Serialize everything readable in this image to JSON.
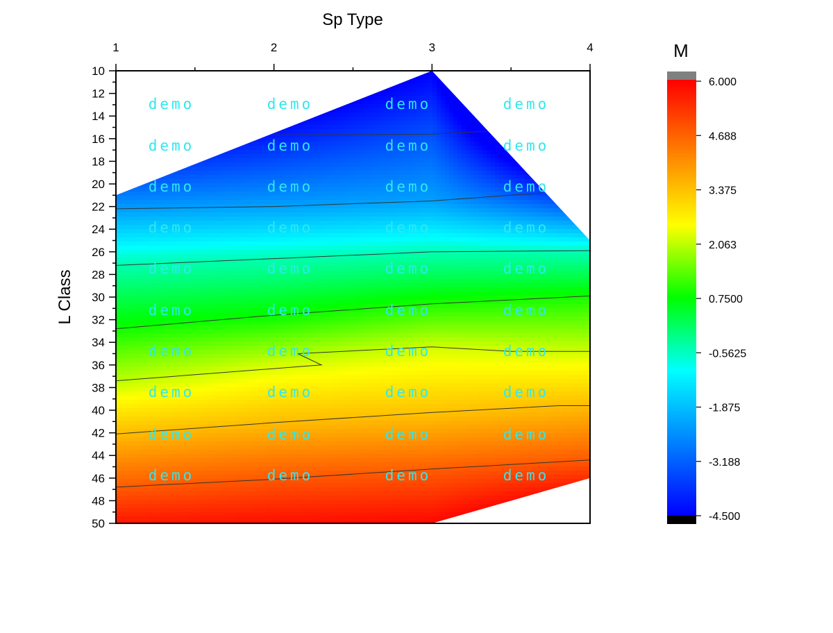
{
  "chart_data": {
    "type": "heatmap",
    "subtype": "filled-contour",
    "xlabel": "Sp Type",
    "ylabel": "L Class",
    "colorbar_title": "M",
    "x_ticks": [
      "1",
      "2",
      "3",
      "4"
    ],
    "y_ticks": [
      "10",
      "12",
      "14",
      "16",
      "18",
      "20",
      "22",
      "24",
      "26",
      "28",
      "30",
      "32",
      "34",
      "36",
      "38",
      "40",
      "42",
      "44",
      "46",
      "48",
      "50"
    ],
    "xlim": [
      1,
      4
    ],
    "ylim": [
      10,
      50
    ],
    "y_inverted": true,
    "x_axis_position": "top",
    "colorbar_ticks": [
      "6.000",
      "4.688",
      "3.375",
      "2.063",
      "0.7500",
      "-0.5625",
      "-1.875",
      "-3.188",
      "-4.500"
    ],
    "colorbar_range": [
      -4.5,
      6.0
    ],
    "colormap": [
      "#0000ff",
      "#0080ff",
      "#00ffff",
      "#00ff00",
      "#ffff00",
      "#ff8000",
      "#ff0000"
    ],
    "over_color": "#808080",
    "under_color": "#000000",
    "data_region": [
      {
        "x": 1,
        "y": 21
      },
      {
        "x": 3,
        "y": 10
      },
      {
        "x": 4,
        "y": 25
      },
      {
        "x": 4,
        "y": 46
      },
      {
        "x": 3,
        "y": 50
      },
      {
        "x": 1,
        "y": 50
      }
    ],
    "value_field": {
      "x": [
        1,
        2,
        3,
        4
      ],
      "description": "M increases with L Class; mapped per Sp Type column",
      "columns": [
        {
          "x": 1,
          "points": [
            {
              "y": 21,
              "m": -2.8
            },
            {
              "y": 27,
              "m": -0.5
            },
            {
              "y": 33,
              "m": 0.9
            },
            {
              "y": 38,
              "m": 2.2
            },
            {
              "y": 42,
              "m": 3.4
            },
            {
              "y": 47,
              "m": 4.8
            },
            {
              "y": 50,
              "m": 5.7
            }
          ]
        },
        {
          "x": 2,
          "points": [
            {
              "y": 15.5,
              "m": -4.2
            },
            {
              "y": 22,
              "m": -2.3
            },
            {
              "y": 26.5,
              "m": -0.5
            },
            {
              "y": 32,
              "m": 0.9
            },
            {
              "y": 36,
              "m": 2.2
            },
            {
              "y": 41,
              "m": 3.4
            },
            {
              "y": 46,
              "m": 4.8
            },
            {
              "y": 50,
              "m": 5.8
            }
          ]
        },
        {
          "x": 3,
          "points": [
            {
              "y": 10,
              "m": -4.5
            },
            {
              "y": 15.5,
              "m": -3.4
            },
            {
              "y": 21.5,
              "m": -2.3
            },
            {
              "y": 26,
              "m": -0.5
            },
            {
              "y": 30.5,
              "m": 0.9
            },
            {
              "y": 34.5,
              "m": 2.2
            },
            {
              "y": 40.5,
              "m": 3.4
            },
            {
              "y": 45.5,
              "m": 4.8
            },
            {
              "y": 50,
              "m": 5.9
            }
          ]
        },
        {
          "x": 4,
          "points": [
            {
              "y": 25,
              "m": -1.2
            },
            {
              "y": 26,
              "m": -0.5
            },
            {
              "y": 30,
              "m": 0.9
            },
            {
              "y": 35,
              "m": 2.2
            },
            {
              "y": 39.5,
              "m": 3.4
            },
            {
              "y": 44.5,
              "m": 4.8
            },
            {
              "y": 46,
              "m": 5.4
            }
          ]
        }
      ]
    },
    "contour_lines": [
      {
        "points": [
          [
            2,
            15.7
          ],
          [
            3,
            15.6
          ],
          [
            3.4,
            15.3
          ]
        ]
      },
      {
        "points": [
          [
            1,
            22.2
          ],
          [
            2,
            22.0
          ],
          [
            3,
            21.5
          ],
          [
            3.7,
            20.8
          ]
        ]
      },
      {
        "points": [
          [
            1,
            27.2
          ],
          [
            2,
            26.6
          ],
          [
            3,
            26.0
          ],
          [
            4,
            25.9
          ]
        ]
      },
      {
        "points": [
          [
            1,
            32.8
          ],
          [
            2,
            31.6
          ],
          [
            3,
            30.6
          ],
          [
            4,
            29.9
          ]
        ]
      },
      {
        "points": [
          [
            1,
            37.4
          ],
          [
            2.3,
            36.0
          ],
          [
            2.15,
            35.0
          ],
          [
            3,
            34.4
          ],
          [
            3.5,
            34.8
          ],
          [
            4,
            34.8
          ]
        ]
      },
      {
        "points": [
          [
            1,
            42.1
          ],
          [
            2,
            41.1
          ],
          [
            3,
            40.2
          ],
          [
            3.8,
            39.6
          ],
          [
            4,
            39.6
          ]
        ]
      },
      {
        "points": [
          [
            1,
            46.8
          ],
          [
            2,
            46.1
          ],
          [
            3,
            45.2
          ],
          [
            4,
            44.4
          ]
        ]
      }
    ],
    "watermark": "demo",
    "grid": false
  }
}
